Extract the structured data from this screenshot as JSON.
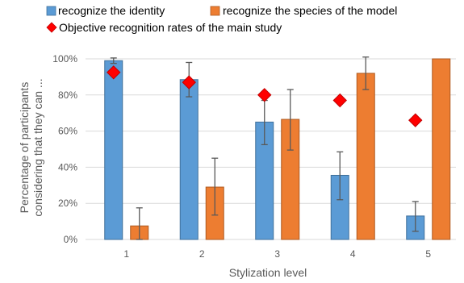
{
  "chart_data": {
    "type": "bar",
    "title": "",
    "xlabel": "Stylization level",
    "ylabel_lines": [
      "Percentage of participants",
      "considering that they can ..."
    ],
    "categories": [
      "1",
      "2",
      "3",
      "4",
      "5"
    ],
    "ylim": [
      0,
      100
    ],
    "yticks": [
      0,
      20,
      40,
      60,
      80,
      100
    ],
    "ytick_labels": [
      "0%",
      "20%",
      "40%",
      "60%",
      "80%",
      "100%"
    ],
    "grid": true,
    "legend_position": "top",
    "series": [
      {
        "name": "recognize the identity",
        "color": "#5B9BD5",
        "values": [
          99,
          88.5,
          65,
          35.5,
          13
        ],
        "error_low": [
          97.5,
          79,
          52.5,
          22,
          4.5
        ],
        "error_high": [
          100.5,
          98,
          77,
          48.5,
          21
        ]
      },
      {
        "name": "recognize the species of the model",
        "color": "#ED7D31",
        "values": [
          7.5,
          29,
          66.5,
          92,
          100
        ],
        "error_low": [
          0,
          13.5,
          49.5,
          83,
          100
        ],
        "error_high": [
          17.5,
          45,
          83,
          101,
          100
        ]
      }
    ],
    "markers": {
      "name": "Objective recognition rates of the main study",
      "color": "#FF0000",
      "shape": "diamond",
      "values": [
        92.5,
        87,
        80,
        77,
        66
      ]
    }
  }
}
